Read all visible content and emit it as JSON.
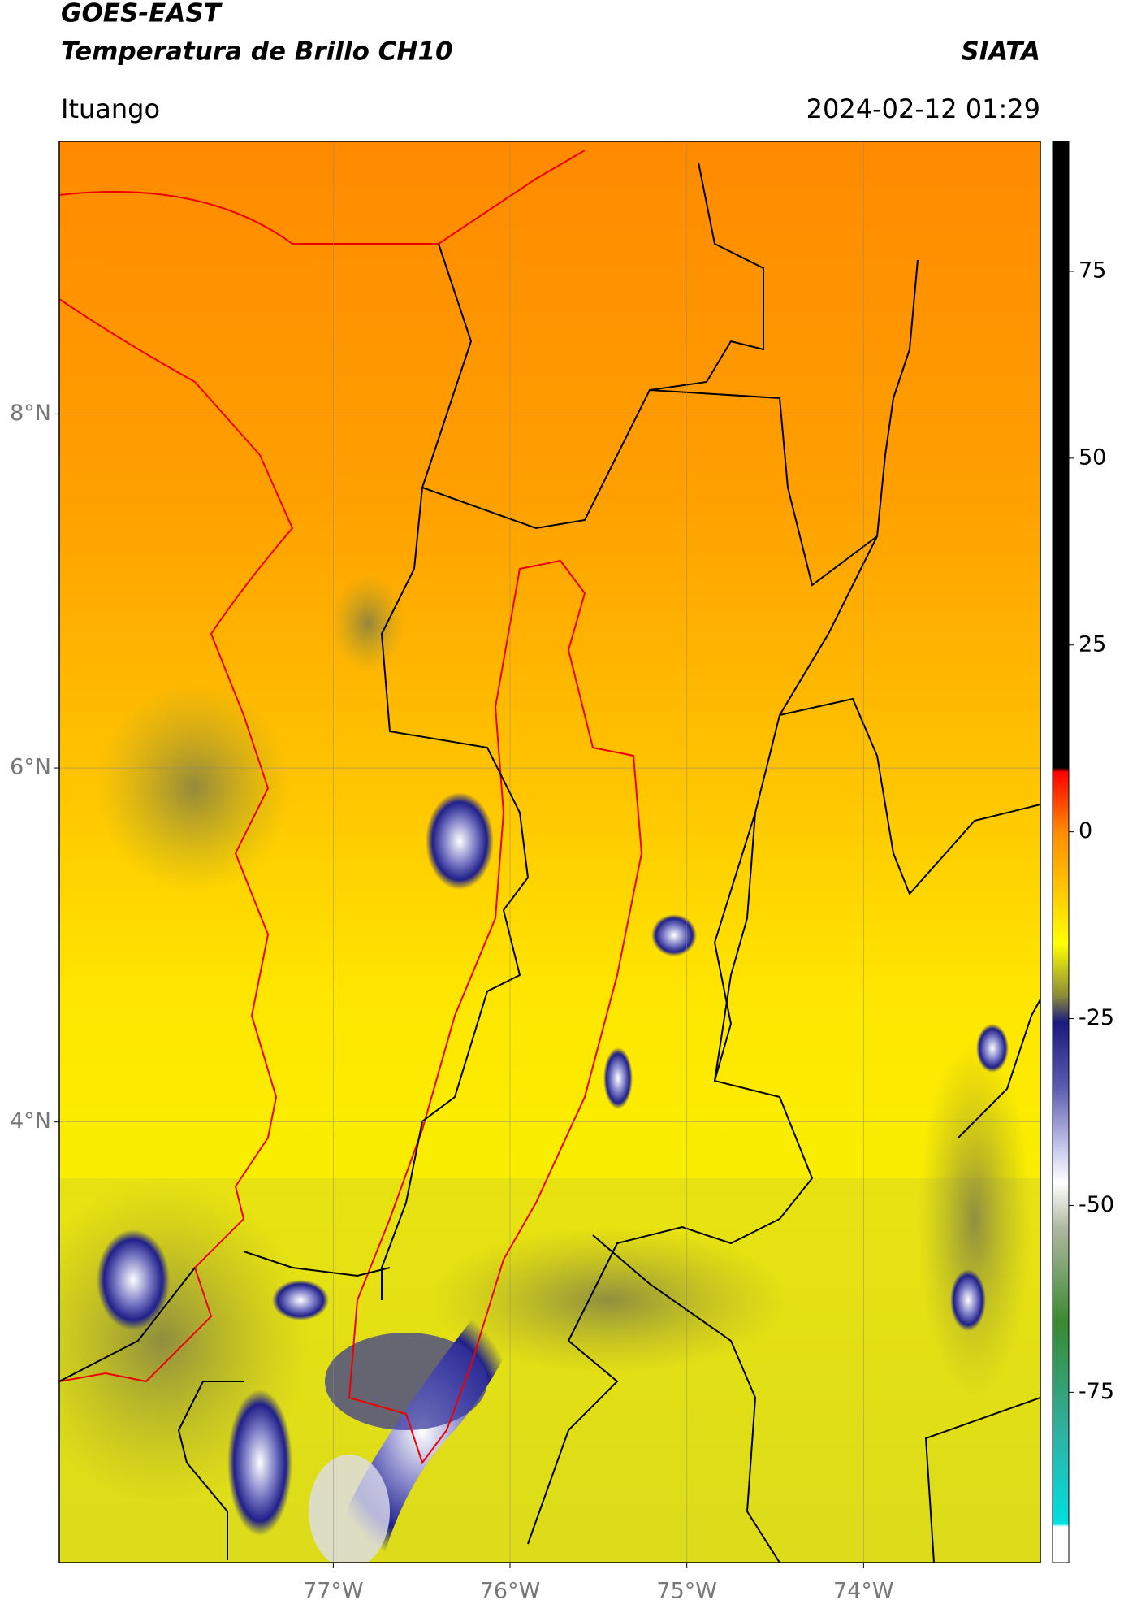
{
  "header": {
    "title": "GOES-EAST",
    "subtitle": "Temperatura de Brillo CH10",
    "source": "SIATA",
    "location": "Ituango",
    "datetime": "2024-02-12 01:29"
  },
  "map": {
    "type": "map",
    "xlim": [
      -78.55,
      -73.0
    ],
    "ylim": [
      1.51,
      9.54
    ],
    "xticks": [
      {
        "value": -77,
        "label": "77°W"
      },
      {
        "value": -76,
        "label": "76°W"
      },
      {
        "value": -75,
        "label": "75°W"
      },
      {
        "value": -74,
        "label": "74°W"
      }
    ],
    "yticks": [
      {
        "value": 8,
        "label": "8°N"
      },
      {
        "value": 6,
        "label": "6°N"
      },
      {
        "value": 4,
        "label": "4°N"
      }
    ],
    "grid": true
  },
  "colorbar": {
    "lim": [
      -97.8,
      92.4
    ],
    "ticks": [
      75,
      50,
      25,
      0,
      -25,
      -50,
      -75
    ],
    "stops": [
      {
        "value": 8.6,
        "color": "#000000"
      },
      {
        "value": 8,
        "color": "#ff0000"
      },
      {
        "value": 0,
        "color": "#ff8c00"
      },
      {
        "value": -15,
        "color": "#ffff00"
      },
      {
        "value": -22,
        "color": "#8a8a3a"
      },
      {
        "value": -25.5,
        "color": "#1a1a80"
      },
      {
        "value": -34,
        "color": "#5a5ab0"
      },
      {
        "value": -43,
        "color": "#d0d0f0"
      },
      {
        "value": -47,
        "color": "#ffffff"
      },
      {
        "value": -53,
        "color": "#b0b8a0"
      },
      {
        "value": -65.6,
        "color": "#3a8a30"
      },
      {
        "value": -80,
        "color": "#30b0a0"
      },
      {
        "value": -92.6,
        "color": "#00e0e0"
      },
      {
        "value": -93,
        "color": "#ffffff"
      }
    ]
  }
}
